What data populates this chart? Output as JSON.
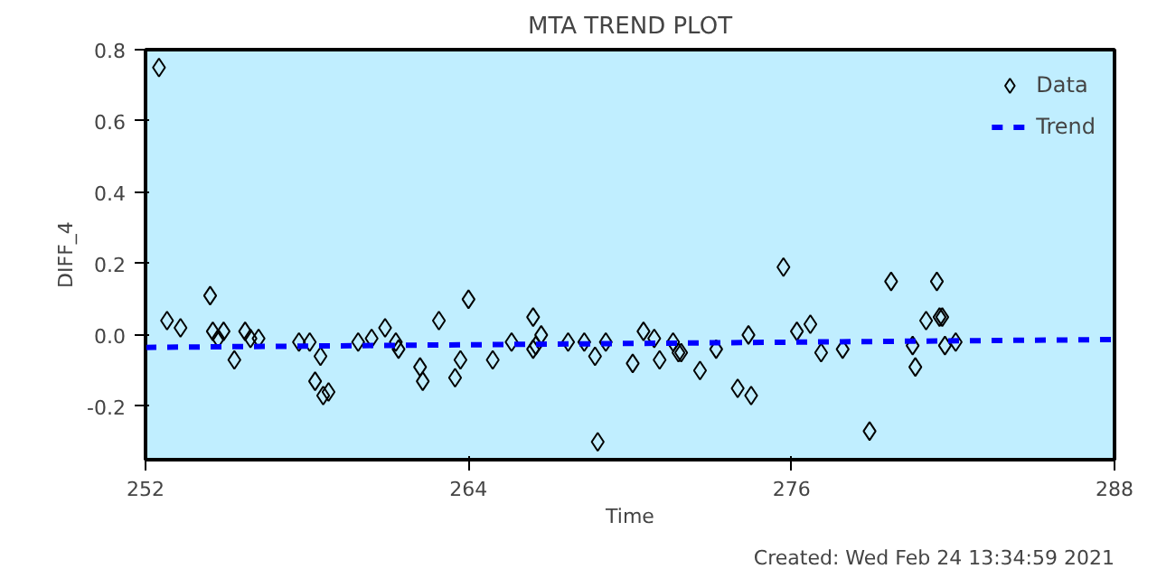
{
  "chart_data": {
    "type": "scatter",
    "title": "MTA TREND PLOT",
    "xlabel": "Time",
    "ylabel": "DIFF_4",
    "annotations": [
      "Created: Wed Feb 24 13:34:59 2021"
    ],
    "xlim": [
      252,
      288
    ],
    "xticks": [
      252,
      264,
      276,
      288
    ],
    "ylim": [
      -0.35,
      0.8
    ],
    "yticks": [
      {
        "value": -0.2,
        "label": "-0.2"
      },
      {
        "value": 0.0,
        "label": "0.0"
      },
      {
        "value": 0.2,
        "label": "0.2"
      },
      {
        "value": 0.4,
        "label": "0.4"
      },
      {
        "value": 0.6,
        "label": "0.6"
      },
      {
        "value": 0.8,
        "label": "0.8"
      }
    ],
    "grid": false,
    "legend": "top right",
    "marker": "diamond",
    "series": [
      {
        "name": "Data",
        "color": "#000000",
        "x": [
          252.5,
          252.8,
          253.3,
          254.4,
          254.5,
          254.9,
          254.7,
          255.3,
          255.7,
          255.9,
          256.2,
          257.7,
          258.1,
          258.5,
          258.3,
          258.6,
          258.8,
          259.9,
          260.4,
          260.9,
          261.3,
          261.4,
          262.2,
          262.3,
          262.9,
          264.0,
          263.7,
          263.5,
          264.9,
          266.4,
          265.6,
          266.5,
          266.7,
          266.4,
          267.7,
          268.3,
          268.7,
          269.1,
          268.8,
          270.1,
          270.5,
          270.9,
          271.1,
          271.6,
          271.8,
          271.9,
          272.6,
          273.2,
          274.0,
          274.5,
          274.4,
          275.7,
          276.2,
          276.7,
          277.1,
          277.9,
          278.9,
          279.7,
          280.5,
          280.6,
          281.0,
          281.4,
          281.5,
          281.6,
          281.7,
          282.1
        ],
        "values": [
          0.75,
          0.04,
          0.02,
          0.11,
          0.01,
          0.01,
          -0.01,
          -0.07,
          0.01,
          -0.01,
          -0.01,
          -0.02,
          -0.02,
          -0.06,
          -0.13,
          -0.17,
          -0.16,
          -0.02,
          -0.01,
          0.02,
          -0.02,
          -0.04,
          -0.09,
          -0.13,
          0.04,
          0.1,
          -0.07,
          -0.12,
          -0.07,
          0.05,
          -0.02,
          -0.03,
          0.0,
          -0.04,
          -0.02,
          -0.02,
          -0.06,
          -0.02,
          -0.3,
          -0.08,
          0.01,
          -0.01,
          -0.07,
          -0.02,
          -0.05,
          -0.05,
          -0.1,
          -0.04,
          -0.15,
          -0.17,
          0.0,
          0.19,
          0.01,
          0.03,
          -0.05,
          -0.04,
          -0.27,
          0.15,
          -0.03,
          -0.09,
          0.04,
          0.15,
          0.05,
          0.05,
          -0.03,
          -0.02
        ]
      },
      {
        "name": "Trend",
        "color": "#0000ff",
        "type": "line",
        "marker": "none",
        "line_style": "dashed",
        "x": [
          252,
          288
        ],
        "values": [
          -0.035,
          -0.013
        ]
      }
    ]
  }
}
